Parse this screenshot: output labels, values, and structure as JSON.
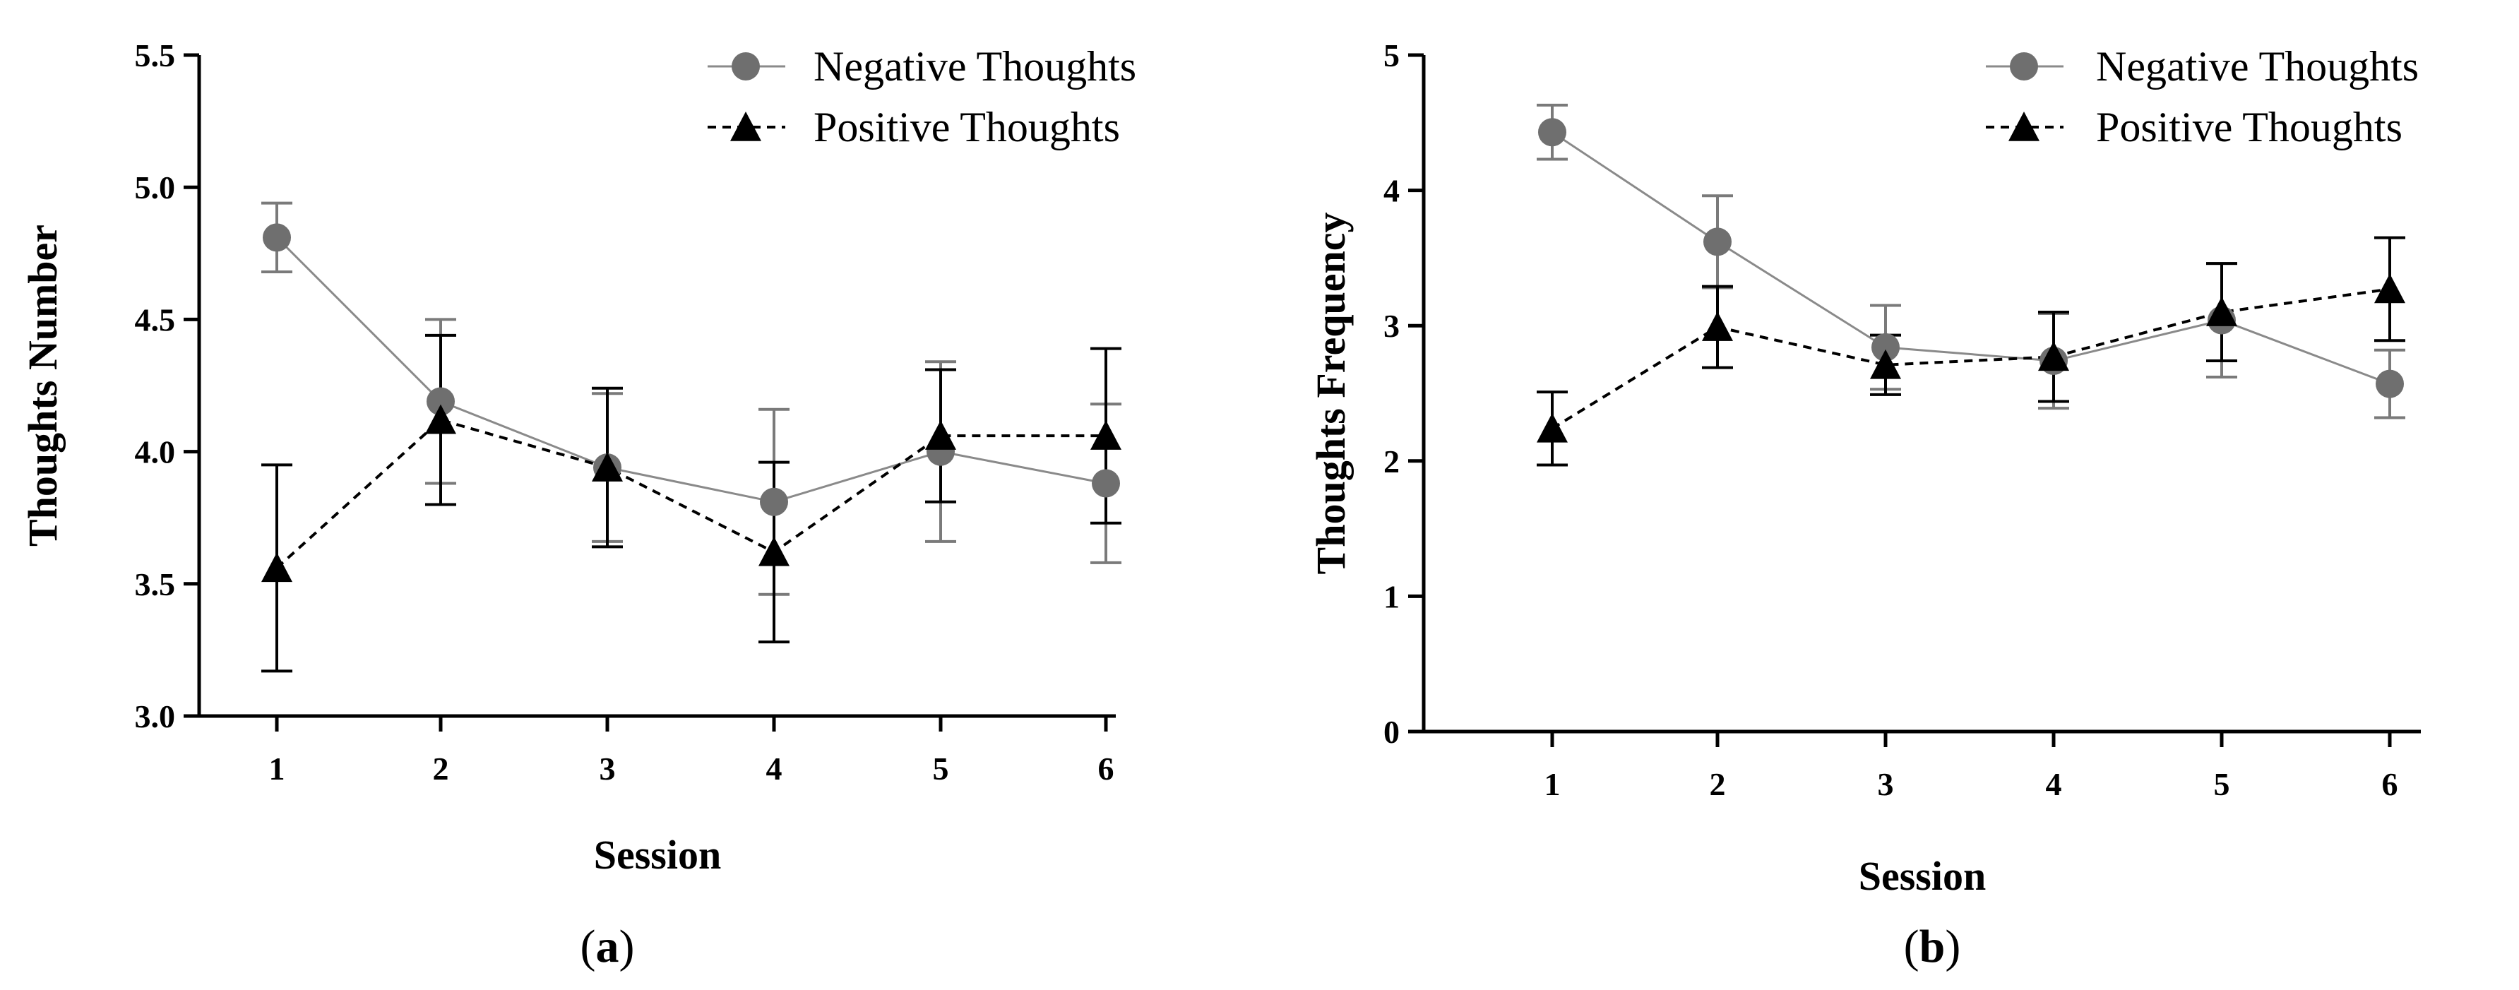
{
  "chart_data": [
    {
      "type": "line",
      "panel_label_open": "(",
      "panel_letter": "a",
      "panel_label_close": ")",
      "xlabel": "Session",
      "ylabel": "Thoughts Number",
      "categories": [
        "1",
        "2",
        "3",
        "4",
        "5",
        "6"
      ],
      "ylim": [
        3.0,
        5.5
      ],
      "yticks": [
        "3.0",
        "3.5",
        "4.0",
        "4.5",
        "5.0",
        "5.5"
      ],
      "ytick_values": [
        3.0,
        3.5,
        4.0,
        4.5,
        5.0,
        5.5
      ],
      "legend_position": "top-right",
      "series": [
        {
          "name": "Negative Thoughts",
          "marker": "circle",
          "line_style": "solid",
          "color": "#6f6f6f",
          "values": [
            4.81,
            4.19,
            3.94,
            3.81,
            4.0,
            3.88
          ],
          "errors": [
            0.13,
            0.31,
            0.28,
            0.35,
            0.34,
            0.3
          ]
        },
        {
          "name": "Positive Thoughts",
          "marker": "triangle",
          "line_style": "dashed",
          "color": "#000000",
          "values": [
            3.56,
            4.12,
            3.94,
            3.62,
            4.06,
            4.06
          ],
          "errors": [
            0.39,
            0.32,
            0.3,
            0.34,
            0.25,
            0.33
          ]
        }
      ]
    },
    {
      "type": "line",
      "panel_label_open": "(",
      "panel_letter": "b",
      "panel_label_close": ")",
      "xlabel": "Session",
      "ylabel": "Thoughts Frequency",
      "categories": [
        "1",
        "2",
        "3",
        "4",
        "5",
        "6"
      ],
      "ylim": [
        0,
        5
      ],
      "yticks": [
        "0",
        "1",
        "2",
        "3",
        "4",
        "5"
      ],
      "ytick_values": [
        0,
        1,
        2,
        3,
        4,
        5
      ],
      "legend_position": "top-right",
      "series": [
        {
          "name": "Negative Thoughts",
          "marker": "circle",
          "line_style": "solid",
          "color": "#6f6f6f",
          "values": [
            4.43,
            3.62,
            2.84,
            2.74,
            3.04,
            2.57
          ],
          "errors": [
            0.2,
            0.34,
            0.31,
            0.35,
            0.42,
            0.25
          ]
        },
        {
          "name": "Positive Thoughts",
          "marker": "triangle",
          "line_style": "dashed",
          "color": "#000000",
          "values": [
            2.24,
            2.99,
            2.71,
            2.77,
            3.1,
            3.27
          ],
          "errors": [
            0.27,
            0.3,
            0.22,
            0.33,
            0.36,
            0.38
          ]
        }
      ]
    }
  ]
}
